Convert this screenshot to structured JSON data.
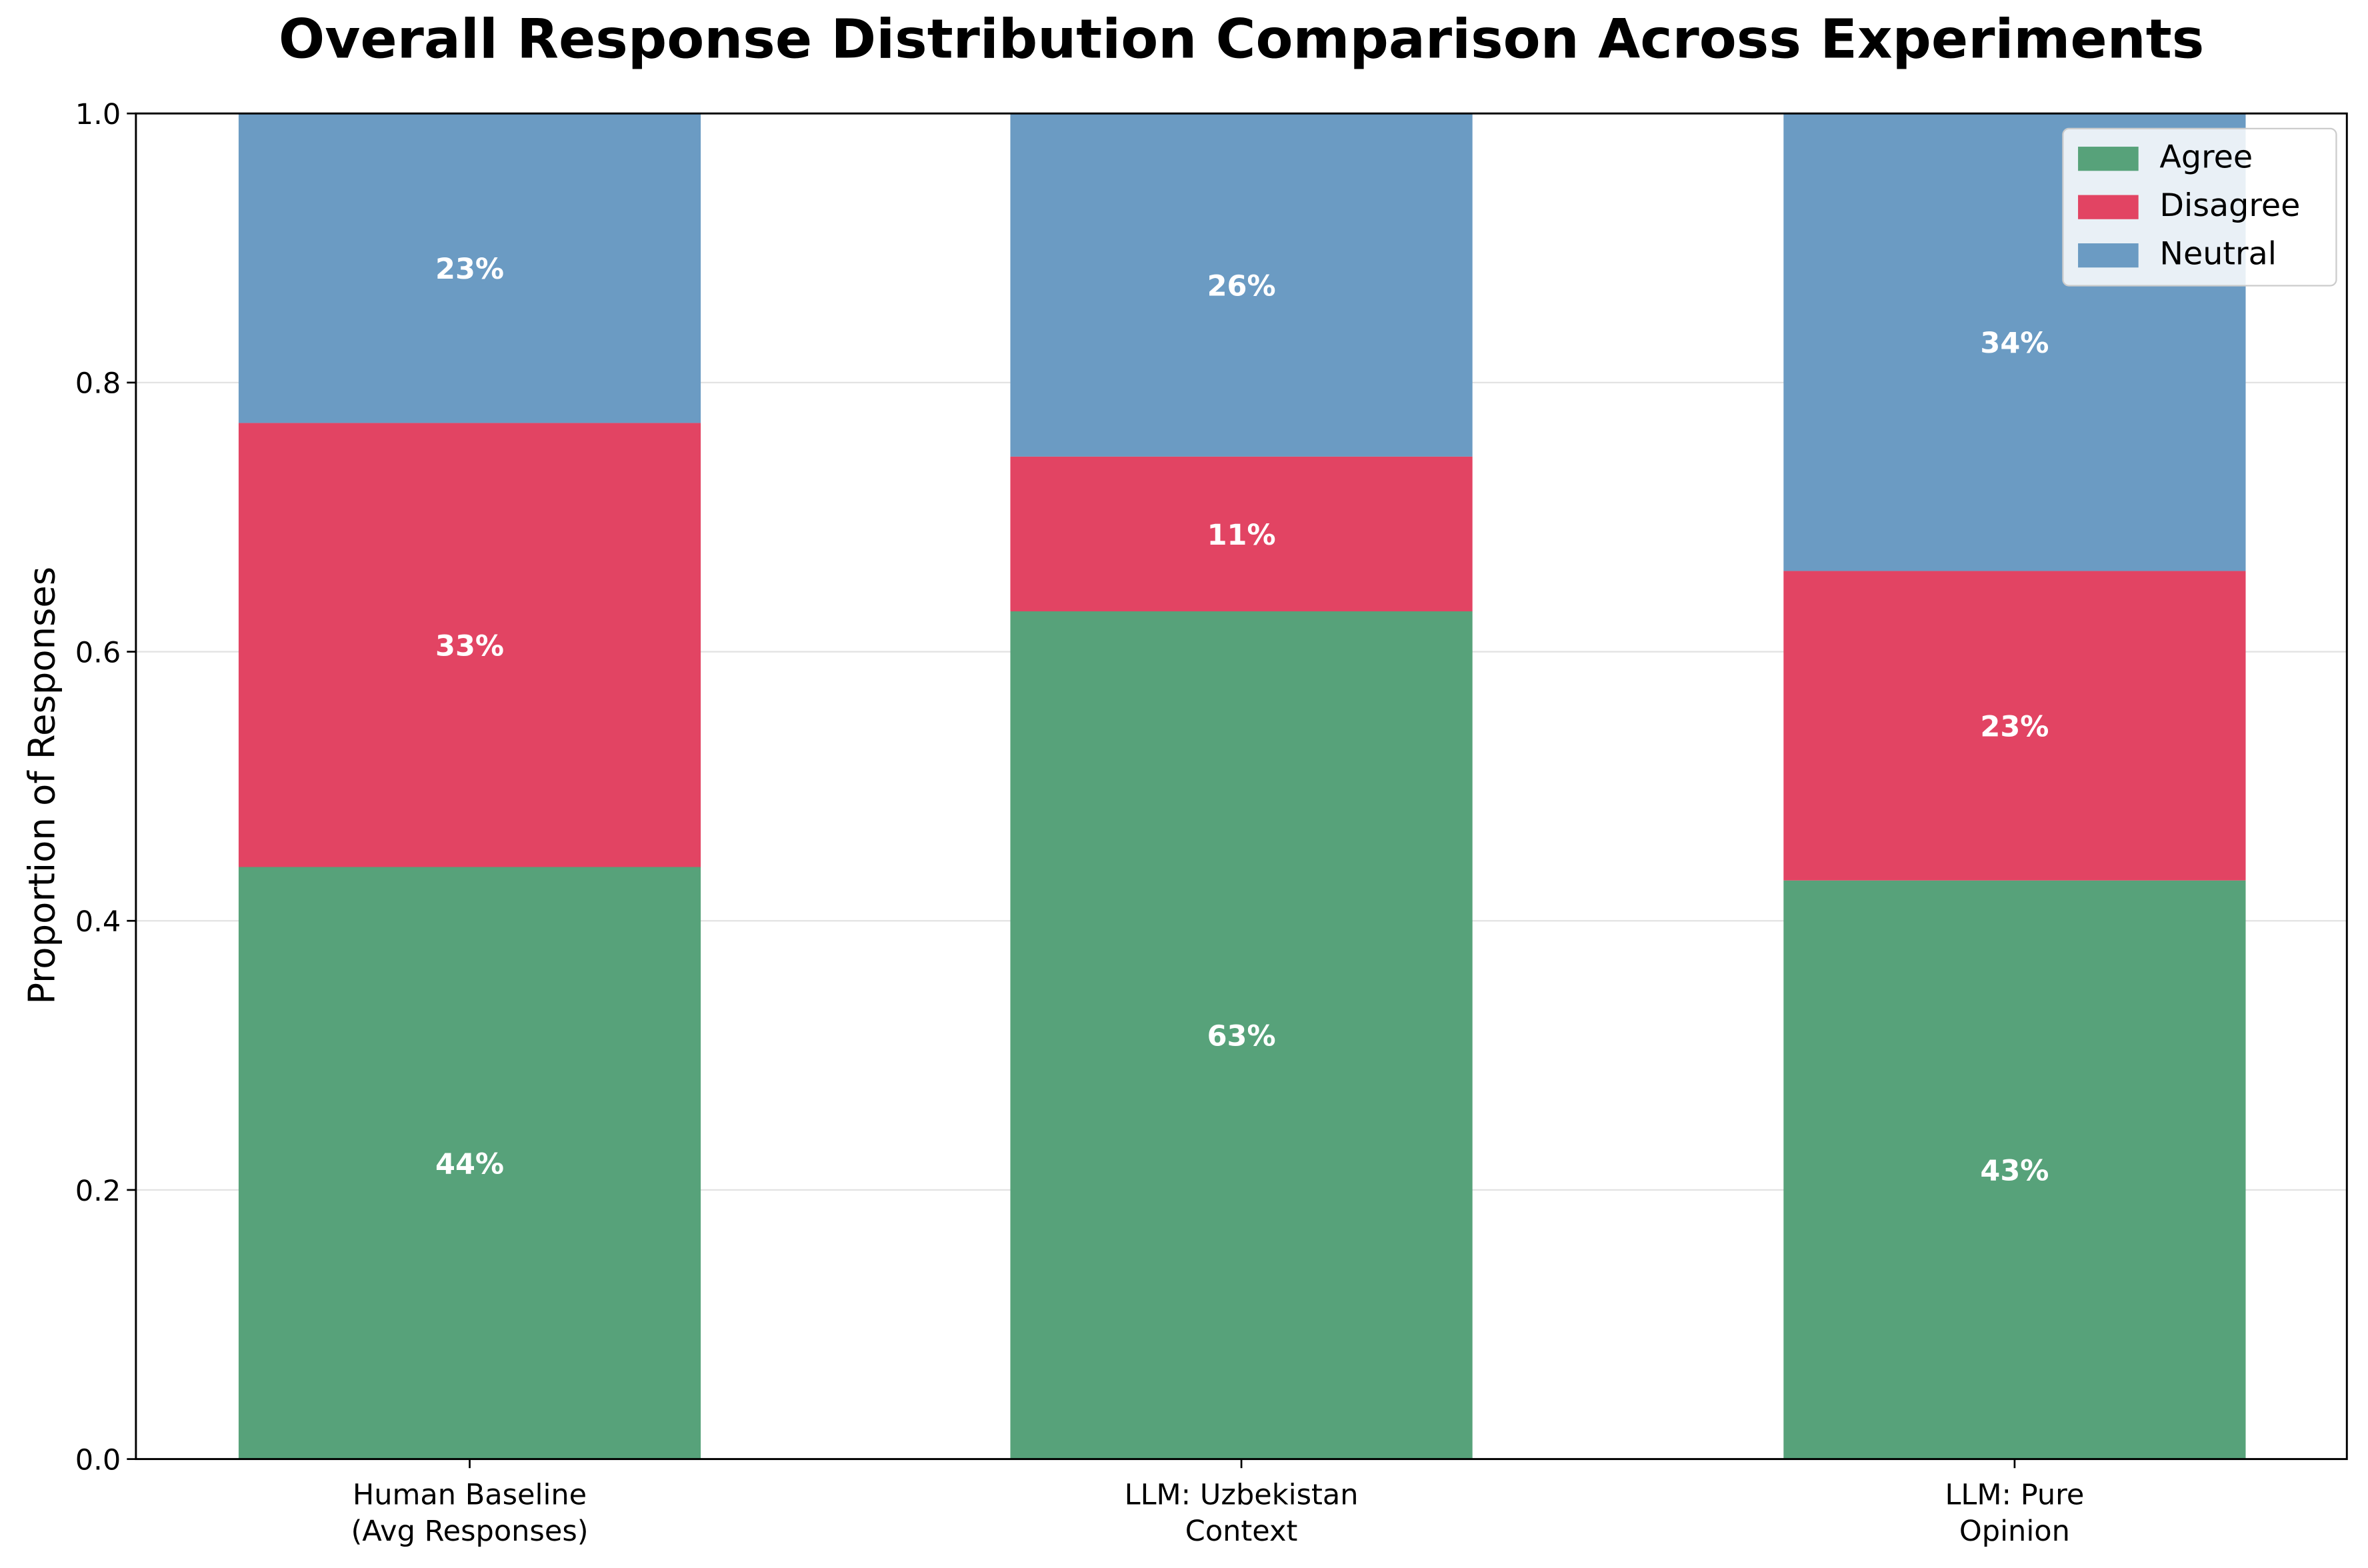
{
  "chart_data": {
    "type": "bar",
    "stacked": true,
    "title": "Overall Response Distribution Comparison Across Experiments",
    "xlabel": "",
    "ylabel": "Proportion of Responses",
    "ylim": [
      0,
      1.0
    ],
    "yticks": [
      "0.0",
      "0.2",
      "0.4",
      "0.6",
      "0.8",
      "1.0"
    ],
    "grid": "horizontal",
    "legend_position": "top-right",
    "categories": [
      [
        "Human Baseline",
        "(Avg Responses)"
      ],
      [
        "LLM: Uzbekistan",
        "Context"
      ],
      [
        "LLM: Pure",
        "Opinion"
      ]
    ],
    "series": [
      {
        "name": "Agree",
        "color": "#57a27a",
        "values": [
          0.44,
          0.63,
          0.43
        ],
        "labels": [
          "44%",
          "63%",
          "43%"
        ]
      },
      {
        "name": "Disagree",
        "color": "#e24463",
        "values": [
          0.33,
          0.115,
          0.23
        ],
        "labels": [
          "33%",
          "11%",
          "23%"
        ]
      },
      {
        "name": "Neutral",
        "color": "#6b9bc3",
        "values": [
          0.23,
          0.255,
          0.34
        ],
        "labels": [
          "23%",
          "26%",
          "34%"
        ]
      }
    ]
  }
}
